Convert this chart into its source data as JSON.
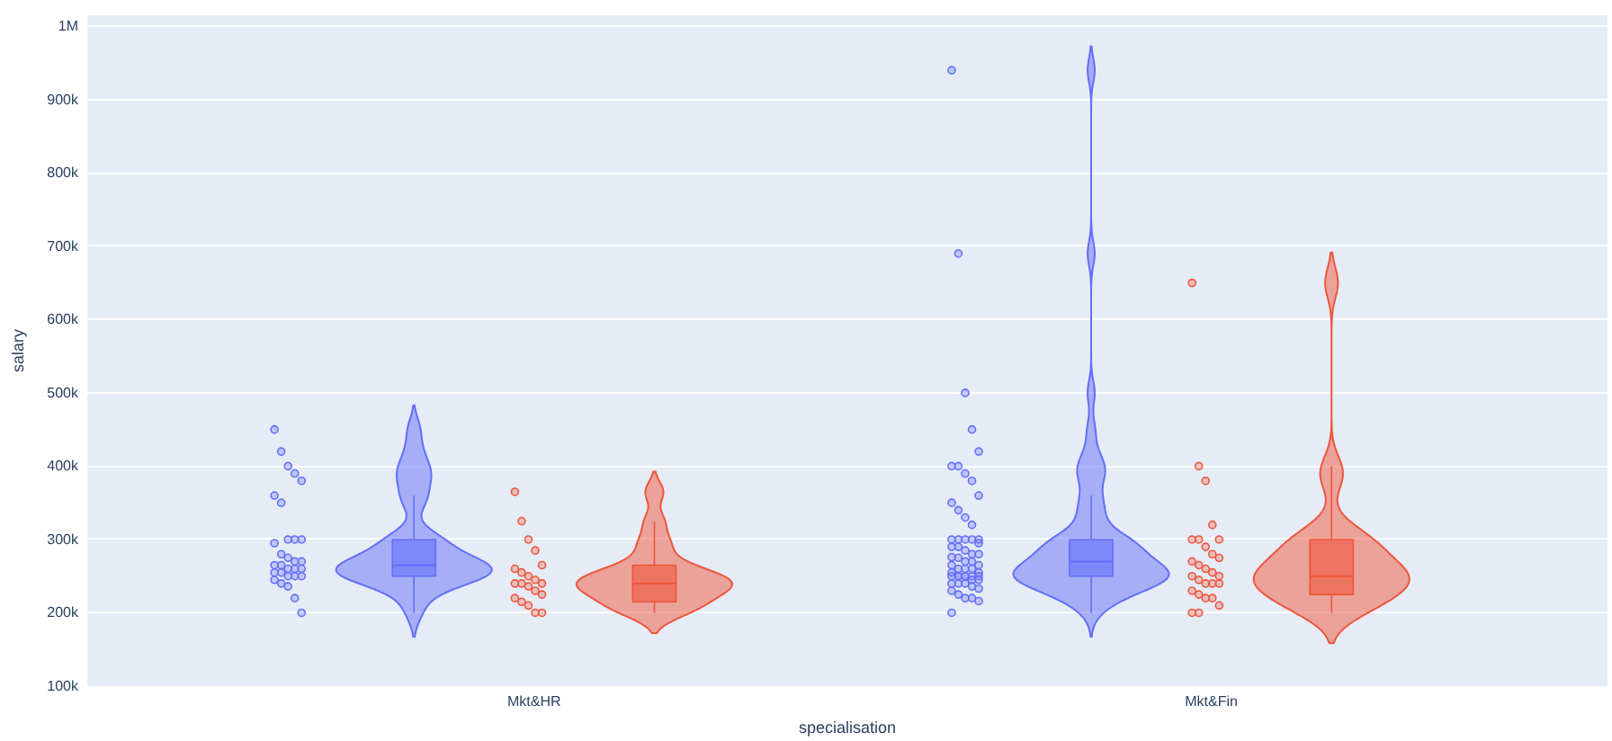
{
  "chart_data": {
    "type": "box",
    "xlabel": "specialisation",
    "ylabel": "salary",
    "categories": [
      "Mkt&HR",
      "Mkt&Fin"
    ],
    "ylim": [
      100000,
      1015000
    ],
    "yticks": [
      {
        "value": 100000,
        "label": "100k"
      },
      {
        "value": 200000,
        "label": "200k"
      },
      {
        "value": 300000,
        "label": "300k"
      },
      {
        "value": 400000,
        "label": "400k"
      },
      {
        "value": 500000,
        "label": "500k"
      },
      {
        "value": 600000,
        "label": "600k"
      },
      {
        "value": 700000,
        "label": "700k"
      },
      {
        "value": 800000,
        "label": "800k"
      },
      {
        "value": 900000,
        "label": "900k"
      },
      {
        "value": 1000000,
        "label": "1M"
      }
    ],
    "grid": "y",
    "marker": "circle",
    "series": [
      {
        "color": "#636efa",
        "boxes": [
          {
            "low": 200000,
            "q1": 250000,
            "median": 265000,
            "q3": 300000,
            "high": 360000
          },
          {
            "low": 200000,
            "q1": 250000,
            "median": 270000,
            "q3": 300000,
            "high": 360000
          }
        ]
      },
      {
        "color": "#ef553b",
        "boxes": [
          {
            "low": 200000,
            "q1": 215000,
            "median": 240000,
            "q3": 265000,
            "high": 325000
          },
          {
            "low": 200000,
            "q1": 225000,
            "median": 250000,
            "q3": 300000,
            "high": 400000
          }
        ]
      },
      {
        "type": "scatter",
        "color": "#636efa",
        "x": [
          "Mkt&HR",
          "Mkt&HR",
          "Mkt&HR",
          "Mkt&HR",
          "Mkt&HR",
          "Mkt&HR",
          "Mkt&HR",
          "Mkt&HR",
          "Mkt&HR",
          "Mkt&HR",
          "Mkt&HR",
          "Mkt&HR",
          "Mkt&HR",
          "Mkt&HR",
          "Mkt&HR",
          "Mkt&HR",
          "Mkt&HR",
          "Mkt&HR",
          "Mkt&HR",
          "Mkt&HR",
          "Mkt&HR",
          "Mkt&HR",
          "Mkt&HR",
          "Mkt&HR",
          "Mkt&HR",
          "Mkt&HR",
          "Mkt&HR",
          "Mkt&HR",
          "Mkt&HR",
          "Mkt&HR",
          "Mkt&Fin",
          "Mkt&Fin",
          "Mkt&Fin",
          "Mkt&Fin",
          "Mkt&Fin",
          "Mkt&Fin",
          "Mkt&Fin",
          "Mkt&Fin",
          "Mkt&Fin",
          "Mkt&Fin",
          "Mkt&Fin",
          "Mkt&Fin",
          "Mkt&Fin",
          "Mkt&Fin",
          "Mkt&Fin",
          "Mkt&Fin",
          "Mkt&Fin",
          "Mkt&Fin",
          "Mkt&Fin",
          "Mkt&Fin",
          "Mkt&Fin",
          "Mkt&Fin",
          "Mkt&Fin",
          "Mkt&Fin",
          "Mkt&Fin",
          "Mkt&Fin",
          "Mkt&Fin",
          "Mkt&Fin",
          "Mkt&Fin",
          "Mkt&Fin",
          "Mkt&Fin",
          "Mkt&Fin",
          "Mkt&Fin",
          "Mkt&Fin",
          "Mkt&Fin",
          "Mkt&Fin",
          "Mkt&Fin",
          "Mkt&Fin",
          "Mkt&Fin",
          "Mkt&Fin",
          "Mkt&Fin",
          "Mkt&Fin",
          "Mkt&Fin",
          "Mkt&Fin",
          "Mkt&Fin",
          "Mkt&Fin",
          "Mkt&Fin",
          "Mkt&Fin",
          "Mkt&Fin",
          "Mkt&Fin",
          "Mkt&Fin",
          "Mkt&Fin",
          "Mkt&Fin",
          "Mkt&Fin",
          "Mkt&Fin",
          "Mkt&Fin"
        ],
        "values": [
          450000,
          420000,
          400000,
          390000,
          380000,
          360000,
          350000,
          300000,
          300000,
          300000,
          295000,
          280000,
          275000,
          270000,
          270000,
          265000,
          265000,
          260000,
          260000,
          260000,
          255000,
          255000,
          250000,
          250000,
          250000,
          245000,
          240000,
          236000,
          220000,
          200000,
          940000,
          690000,
          500000,
          450000,
          420000,
          400000,
          400000,
          390000,
          380000,
          360000,
          350000,
          340000,
          330000,
          320000,
          300000,
          300000,
          300000,
          300000,
          300000,
          295000,
          290000,
          290000,
          285000,
          280000,
          280000,
          276000,
          275000,
          270000,
          270000,
          265000,
          265000,
          260000,
          260000,
          260000,
          255000,
          255000,
          250000,
          250000,
          250000,
          250000,
          250000,
          250000,
          250000,
          245000,
          245000,
          240000,
          240000,
          240000,
          236000,
          233000,
          230000,
          225000,
          220000,
          220000,
          216000,
          200000
        ]
      },
      {
        "type": "scatter",
        "color": "#ef553b",
        "x": [
          "Mkt&HR",
          "Mkt&HR",
          "Mkt&HR",
          "Mkt&HR",
          "Mkt&HR",
          "Mkt&HR",
          "Mkt&HR",
          "Mkt&HR",
          "Mkt&HR",
          "Mkt&HR",
          "Mkt&HR",
          "Mkt&HR",
          "Mkt&HR",
          "Mkt&HR",
          "Mkt&HR",
          "Mkt&HR",
          "Mkt&HR",
          "Mkt&HR",
          "Mkt&HR",
          "Mkt&HR",
          "Mkt&Fin",
          "Mkt&Fin",
          "Mkt&Fin",
          "Mkt&Fin",
          "Mkt&Fin",
          "Mkt&Fin",
          "Mkt&Fin",
          "Mkt&Fin",
          "Mkt&Fin",
          "Mkt&Fin",
          "Mkt&Fin",
          "Mkt&Fin",
          "Mkt&Fin",
          "Mkt&Fin",
          "Mkt&Fin",
          "Mkt&Fin",
          "Mkt&Fin",
          "Mkt&Fin",
          "Mkt&Fin",
          "Mkt&Fin",
          "Mkt&Fin",
          "Mkt&Fin",
          "Mkt&Fin",
          "Mkt&Fin",
          "Mkt&Fin",
          "Mkt&Fin",
          "Mkt&Fin"
        ],
        "values": [
          365000,
          325000,
          300000,
          285000,
          265000,
          260000,
          255000,
          250000,
          245000,
          240000,
          240000,
          240000,
          236000,
          230000,
          225000,
          220000,
          215000,
          210000,
          200000,
          200000,
          650000,
          400000,
          380000,
          320000,
          300000,
          300000,
          300000,
          290000,
          280000,
          275000,
          270000,
          265000,
          260000,
          255000,
          250000,
          250000,
          245000,
          240000,
          240000,
          240000,
          230000,
          225000,
          220000,
          220000,
          210000,
          200000,
          200000
        ]
      }
    ]
  }
}
